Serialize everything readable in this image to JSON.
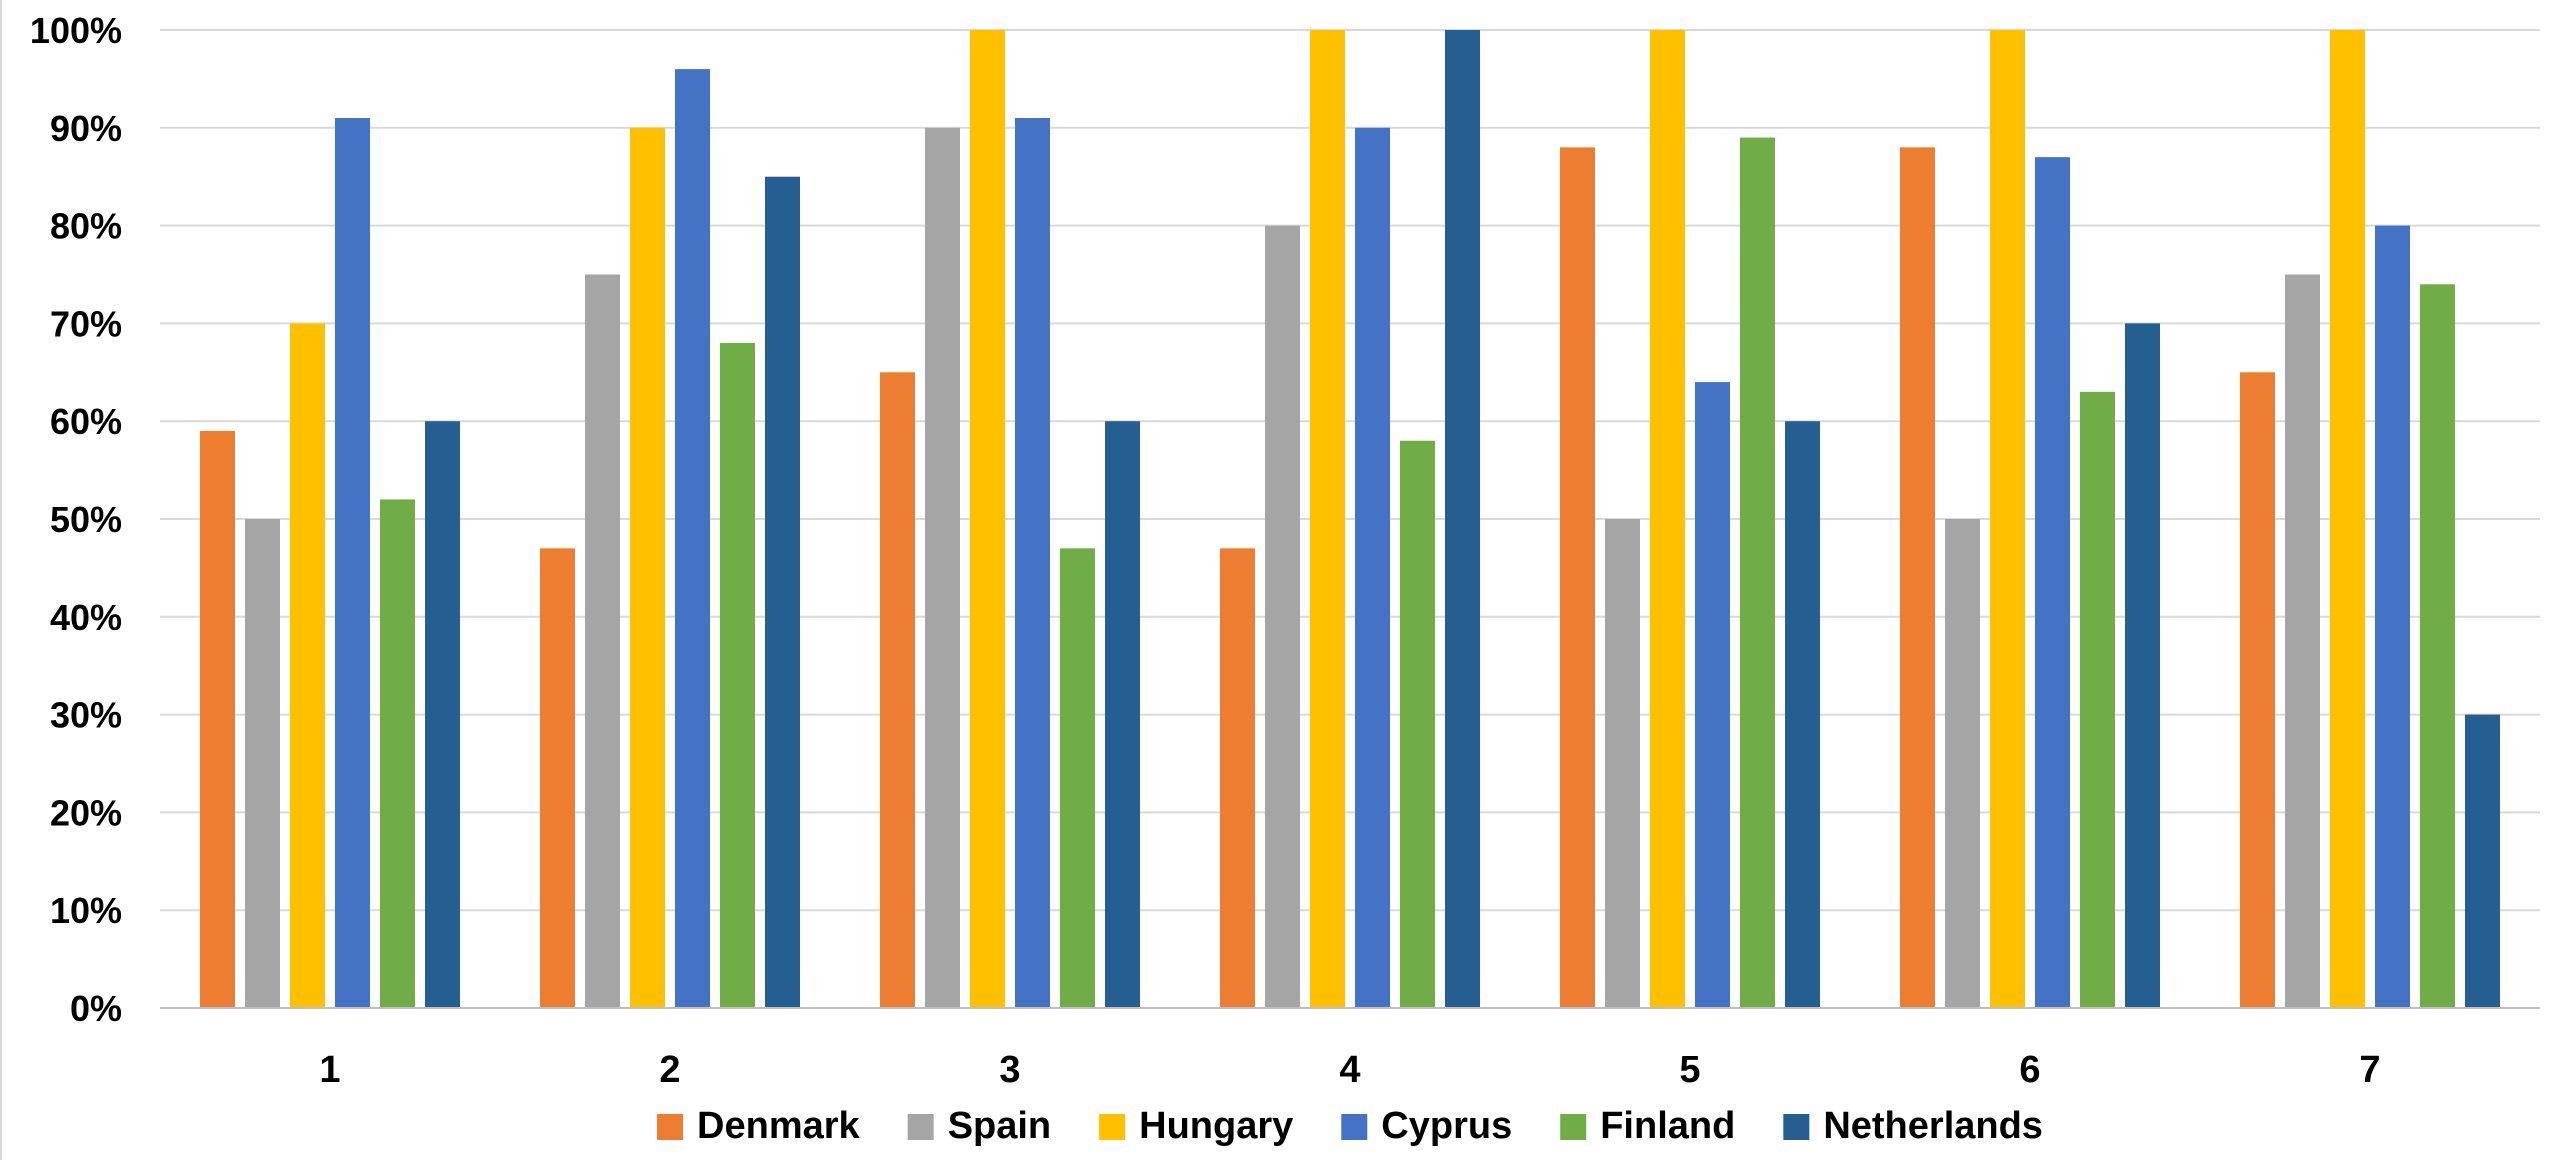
{
  "chart_data": {
    "type": "bar",
    "title": "",
    "xlabel": "",
    "ylabel": "",
    "categories": [
      "1",
      "2",
      "3",
      "4",
      "5",
      "6",
      "7"
    ],
    "ylim": [
      0,
      100
    ],
    "y_tick_labels": [
      "0%",
      "10%",
      "20%",
      "30%",
      "40%",
      "50%",
      "60%",
      "70%",
      "80%",
      "90%",
      "100%"
    ],
    "grid": true,
    "legend_position": "bottom",
    "series": [
      {
        "name": "Denmark",
        "color": "#ED7D31",
        "values": [
          59,
          47,
          65,
          47,
          88,
          88,
          65
        ]
      },
      {
        "name": "Spain",
        "color": "#A5A5A5",
        "values": [
          50,
          75,
          90,
          80,
          50,
          50,
          75
        ]
      },
      {
        "name": "Hungary",
        "color": "#FFC000",
        "values": [
          70,
          90,
          100,
          100,
          100,
          100,
          100
        ]
      },
      {
        "name": "Cyprus",
        "color": "#4472C4",
        "values": [
          91,
          96,
          91,
          90,
          64,
          87,
          80
        ]
      },
      {
        "name": "Finland",
        "color": "#70AD47",
        "values": [
          52,
          68,
          47,
          58,
          89,
          63,
          74
        ]
      },
      {
        "name": "Netherlands",
        "color": "#255E91",
        "values": [
          60,
          85,
          60,
          100,
          60,
          70,
          30
        ]
      }
    ]
  }
}
